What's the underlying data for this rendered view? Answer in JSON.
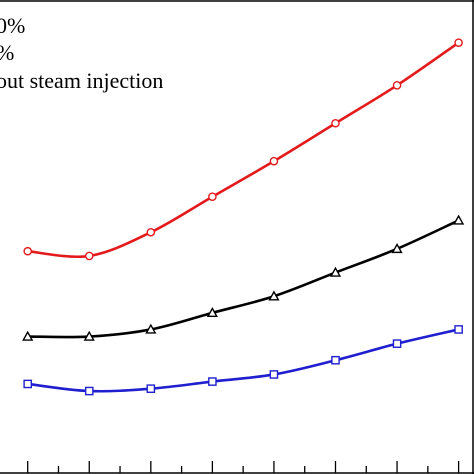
{
  "chart_data": {
    "type": "line",
    "title": "",
    "xlabel": "",
    "ylabel": "",
    "legend": {
      "placement": "top-left",
      "entries": [
        "0%",
        "%",
        "out steam injection"
      ]
    },
    "x": [
      0,
      1,
      2,
      3,
      4,
      5,
      6,
      7
    ],
    "xlim": [
      -0.45,
      7.25
    ],
    "ylim": [
      0,
      10
    ],
    "grid": false,
    "series": [
      {
        "color": "#e31a1c",
        "marker": "circle",
        "values": [
          4.7,
          4.6,
          5.1,
          5.85,
          6.6,
          7.4,
          8.2,
          9.1
        ]
      },
      {
        "color": "#000000",
        "marker": "triangle",
        "values": [
          2.9,
          2.9,
          3.05,
          3.4,
          3.75,
          4.25,
          4.75,
          5.35
        ]
      },
      {
        "color": "#1f1fcf",
        "marker": "square",
        "values": [
          1.9,
          1.75,
          1.8,
          1.95,
          2.1,
          2.4,
          2.75,
          3.05
        ]
      }
    ]
  }
}
